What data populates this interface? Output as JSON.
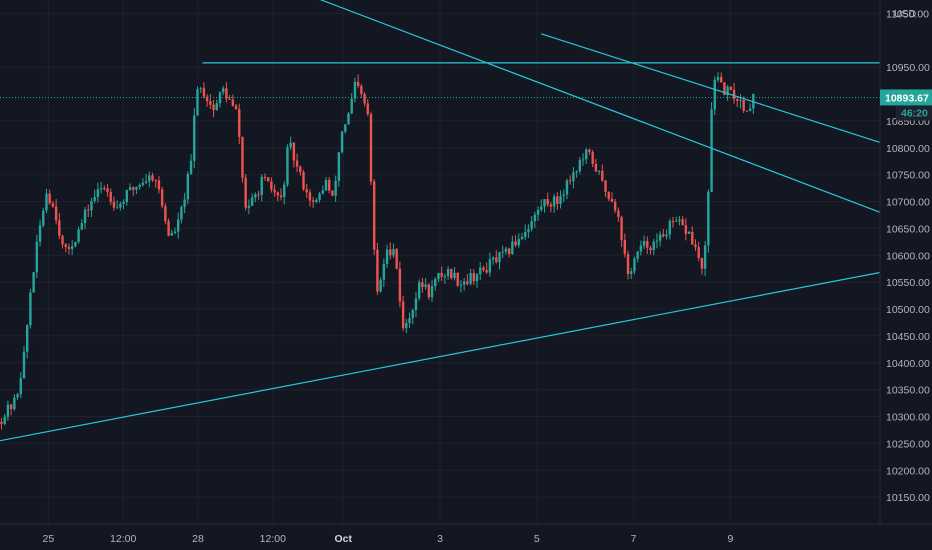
{
  "chart_data": {
    "type": "candlestick",
    "currency": "USD",
    "colors": {
      "background": "#131722",
      "up": "#26a69a",
      "down": "#ef5350",
      "trendline": "#26c6da",
      "grid": "#1e222d",
      "last_price_bg": "#26a69a"
    },
    "y_range": [
      10100,
      11075
    ],
    "y_ticks": [
      "11050.00",
      "10950.00",
      "10850.00",
      "10800.00",
      "10750.00",
      "10700.00",
      "10650.00",
      "10600.00",
      "10550.00",
      "10500.00",
      "10450.00",
      "10400.00",
      "10350.00",
      "10300.00",
      "10250.00",
      "10200.00",
      "10150.00"
    ],
    "x_ticks": [
      {
        "label": "25",
        "bold": false,
        "pos": 0.055
      },
      {
        "label": "12:00",
        "bold": false,
        "pos": 0.14
      },
      {
        "label": "28",
        "bold": false,
        "pos": 0.225
      },
      {
        "label": "12:00",
        "bold": false,
        "pos": 0.31
      },
      {
        "label": "Oct",
        "bold": true,
        "pos": 0.39
      },
      {
        "label": "3",
        "bold": false,
        "pos": 0.5
      },
      {
        "label": "5",
        "bold": false,
        "pos": 0.61
      },
      {
        "label": "7",
        "bold": false,
        "pos": 0.72
      },
      {
        "label": "9",
        "bold": false,
        "pos": 0.83
      }
    ],
    "last_price": "10893.67",
    "countdown": "46:20",
    "anchors": [
      [
        0.0,
        10290
      ],
      [
        0.02,
        10330
      ],
      [
        0.03,
        10420
      ],
      [
        0.037,
        10540
      ],
      [
        0.048,
        10660
      ],
      [
        0.055,
        10720
      ],
      [
        0.065,
        10680
      ],
      [
        0.075,
        10600
      ],
      [
        0.09,
        10640
      ],
      [
        0.105,
        10700
      ],
      [
        0.12,
        10730
      ],
      [
        0.135,
        10690
      ],
      [
        0.15,
        10720
      ],
      [
        0.165,
        10740
      ],
      [
        0.178,
        10750
      ],
      [
        0.185,
        10700
      ],
      [
        0.195,
        10630
      ],
      [
        0.205,
        10660
      ],
      [
        0.213,
        10720
      ],
      [
        0.22,
        10780
      ],
      [
        0.225,
        10920
      ],
      [
        0.235,
        10900
      ],
      [
        0.245,
        10870
      ],
      [
        0.255,
        10910
      ],
      [
        0.265,
        10880
      ],
      [
        0.272,
        10860
      ],
      [
        0.28,
        10690
      ],
      [
        0.29,
        10700
      ],
      [
        0.3,
        10740
      ],
      [
        0.312,
        10720
      ],
      [
        0.322,
        10700
      ],
      [
        0.33,
        10810
      ],
      [
        0.34,
        10760
      ],
      [
        0.35,
        10720
      ],
      [
        0.36,
        10690
      ],
      [
        0.372,
        10740
      ],
      [
        0.38,
        10700
      ],
      [
        0.39,
        10830
      ],
      [
        0.398,
        10860
      ],
      [
        0.406,
        10920
      ],
      [
        0.414,
        10890
      ],
      [
        0.42,
        10860
      ],
      [
        0.425,
        10680
      ],
      [
        0.43,
        10520
      ],
      [
        0.44,
        10600
      ],
      [
        0.45,
        10620
      ],
      [
        0.46,
        10460
      ],
      [
        0.47,
        10500
      ],
      [
        0.48,
        10550
      ],
      [
        0.49,
        10530
      ],
      [
        0.5,
        10560
      ],
      [
        0.512,
        10570
      ],
      [
        0.525,
        10550
      ],
      [
        0.538,
        10560
      ],
      [
        0.55,
        10570
      ],
      [
        0.563,
        10590
      ],
      [
        0.576,
        10600
      ],
      [
        0.59,
        10630
      ],
      [
        0.605,
        10660
      ],
      [
        0.62,
        10700
      ],
      [
        0.635,
        10700
      ],
      [
        0.648,
        10740
      ],
      [
        0.66,
        10770
      ],
      [
        0.67,
        10790
      ],
      [
        0.68,
        10760
      ],
      [
        0.69,
        10720
      ],
      [
        0.7,
        10700
      ],
      [
        0.708,
        10640
      ],
      [
        0.715,
        10560
      ],
      [
        0.725,
        10600
      ],
      [
        0.735,
        10620
      ],
      [
        0.748,
        10620
      ],
      [
        0.76,
        10650
      ],
      [
        0.772,
        10660
      ],
      [
        0.785,
        10640
      ],
      [
        0.795,
        10600
      ],
      [
        0.8,
        10570
      ],
      [
        0.805,
        10630
      ],
      [
        0.812,
        10940
      ],
      [
        0.822,
        10910
      ],
      [
        0.832,
        10900
      ],
      [
        0.842,
        10890
      ],
      [
        0.85,
        10870
      ],
      [
        0.858,
        10894
      ]
    ],
    "trendlines": [
      {
        "from": [
          0.0,
          10255
        ],
        "to": [
          1.0,
          10568
        ]
      },
      {
        "from": [
          0.23,
          10958
        ],
        "to": [
          1.0,
          10958
        ]
      },
      {
        "from": [
          0.325,
          11100
        ],
        "to": [
          1.0,
          10680
        ]
      },
      {
        "from": [
          0.615,
          11012
        ],
        "to": [
          1.0,
          10810
        ]
      }
    ]
  }
}
